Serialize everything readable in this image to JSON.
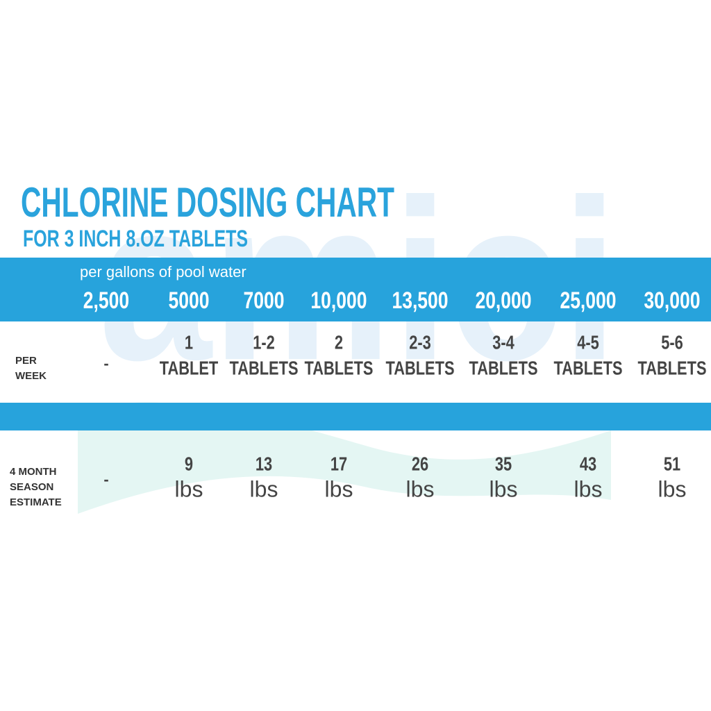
{
  "watermark": "amici",
  "title": "CHLORINE DOSING CHART",
  "subtitle": "FOR 3 INCH 8.OZ TABLETS",
  "table": {
    "header_label": "per gallons of pool water",
    "columns": [
      "2,500",
      "5000",
      "7000",
      "10,000",
      "13,500",
      "20,000",
      "25,000",
      "30,000"
    ],
    "rows": [
      {
        "label": [
          "PER",
          "WEEK"
        ],
        "cells": [
          [
            "-"
          ],
          [
            "1",
            "TABLET"
          ],
          [
            "1-2",
            "TABLETS"
          ],
          [
            "2",
            "TABLETS"
          ],
          [
            "2-3",
            "TABLETS"
          ],
          [
            "3-4",
            "TABLETS"
          ],
          [
            "4-5",
            "TABLETS"
          ],
          [
            "5-6",
            "TABLETS"
          ]
        ]
      },
      {
        "label": [
          "4 MONTH",
          "SEASON",
          "ESTIMATE"
        ],
        "cells": [
          [
            "-"
          ],
          [
            "9",
            "lbs"
          ],
          [
            "13",
            "lbs"
          ],
          [
            "17",
            "lbs"
          ],
          [
            "26",
            "lbs"
          ],
          [
            "35",
            "lbs"
          ],
          [
            "43",
            "lbs"
          ],
          [
            "51",
            "lbs"
          ]
        ]
      }
    ]
  }
}
